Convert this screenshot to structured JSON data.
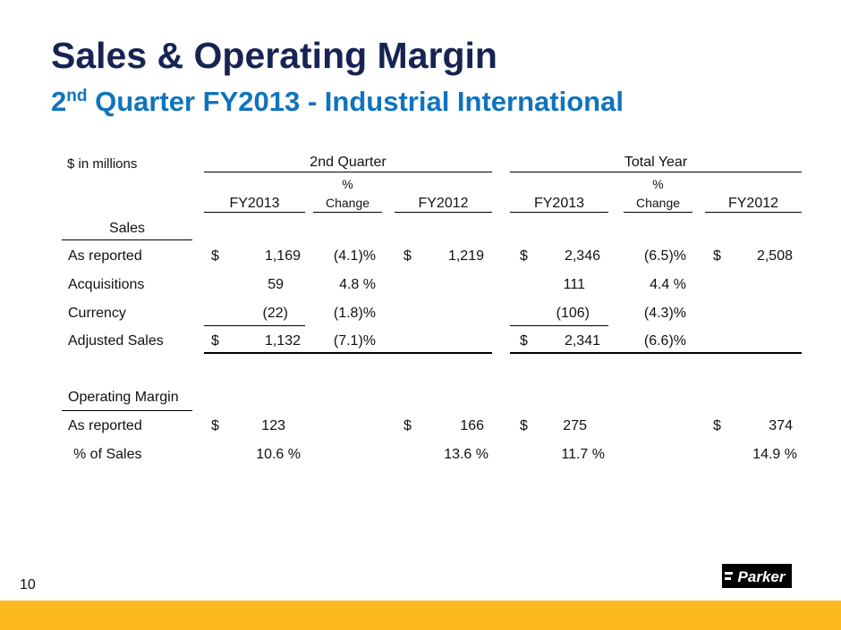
{
  "slide": {
    "title": "Sales & Operating Margin",
    "subtitle_main": "2",
    "subtitle_sup": "nd",
    "subtitle_rest": " Quarter FY2013 - Industrial International",
    "page_number": "10"
  },
  "table": {
    "unit_label": "$  in millions",
    "group_quarter": "2nd Quarter",
    "group_year": "Total Year",
    "col_fy2013": "FY2013",
    "col_pct_top": "%",
    "col_pct_bottom": "Change",
    "col_fy2012": "FY2012",
    "section_sales": "Sales",
    "section_margin": "Operating Margin",
    "rows": {
      "as_reported": {
        "label": "As reported",
        "q_cur_sym": "$",
        "q_cur": "1,169",
        "q_chg": "(4.1)%",
        "q_prev_sym": "$",
        "q_prev": "1,219",
        "y_cur_sym": "$",
        "y_cur": "2,346",
        "y_chg": "(6.5)%",
        "y_prev_sym": "$",
        "y_prev": "2,508"
      },
      "acquisitions": {
        "label": "Acquisitions",
        "q_cur": "59",
        "q_chg": "4.8 %",
        "y_cur": "111",
        "y_chg": "4.4 %"
      },
      "currency": {
        "label": "Currency",
        "q_cur": "(22)",
        "q_chg": "(1.8)%",
        "y_cur": "(106)",
        "y_chg": "(4.3)%"
      },
      "adjusted": {
        "label": "Adjusted Sales",
        "q_cur_sym": "$",
        "q_cur": "1,132",
        "q_chg": "(7.1)%",
        "y_cur_sym": "$",
        "y_cur": "2,341",
        "y_chg": "(6.6)%"
      },
      "om_reported": {
        "label": "As reported",
        "q_cur_sym": "$",
        "q_cur": "123",
        "q_prev_sym": "$",
        "q_prev": "166",
        "y_cur_sym": "$",
        "y_cur": "275",
        "y_prev_sym": "$",
        "y_prev": "374"
      },
      "pct_sales": {
        "label": "% of Sales",
        "q_cur": "10.6 %",
        "q_prev": "13.6 %",
        "y_cur": "11.7 %",
        "y_prev": "14.9 %"
      }
    }
  },
  "logo": {
    "text": "Parker"
  },
  "colors": {
    "title": "#172353",
    "subtitle": "#0f73be",
    "footer": "#fcb920"
  }
}
